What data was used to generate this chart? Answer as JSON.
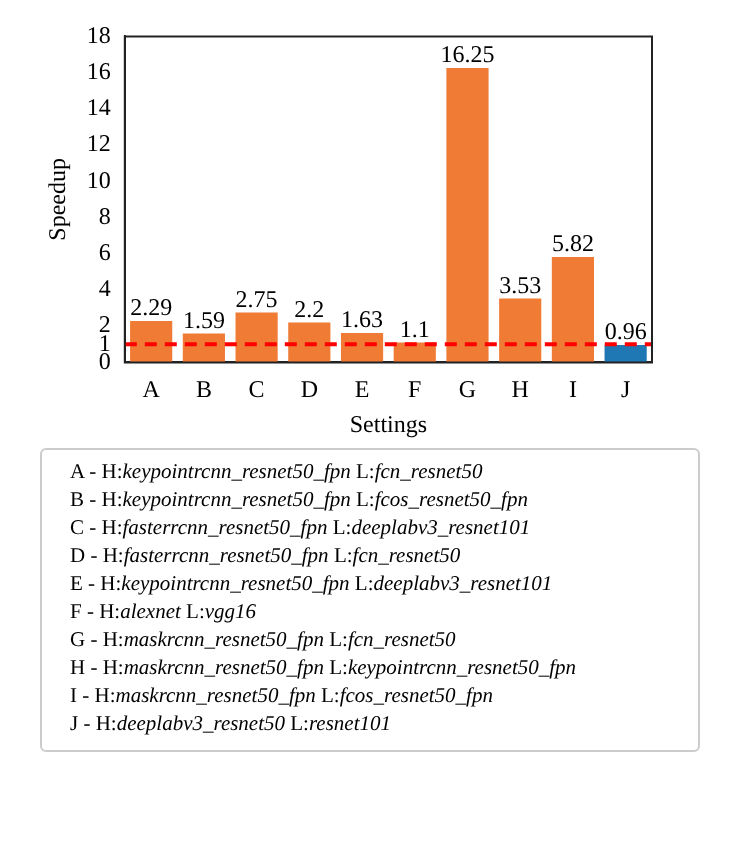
{
  "chart_data": {
    "type": "bar",
    "xlabel": "Settings",
    "ylabel": "Speedup",
    "categories": [
      "A",
      "B",
      "C",
      "D",
      "E",
      "F",
      "G",
      "H",
      "I",
      "J"
    ],
    "values": [
      2.29,
      1.59,
      2.75,
      2.2,
      1.63,
      1.1,
      16.25,
      3.53,
      5.82,
      0.96
    ],
    "colors": [
      "#ef7b35",
      "#ef7b35",
      "#ef7b35",
      "#ef7b35",
      "#ef7b35",
      "#ef7b35",
      "#ef7b35",
      "#ef7b35",
      "#ef7b35",
      "#1f77b4"
    ],
    "data_labels": true,
    "ylim": [
      0,
      18
    ],
    "yticks": [
      0,
      1,
      2,
      4,
      6,
      8,
      10,
      12,
      14,
      16,
      18
    ],
    "grid": false,
    "legend": false,
    "ref_lines": [
      {
        "axis": "y",
        "value": 1,
        "color": "#ff0000",
        "line_style": "dashed"
      }
    ],
    "annotations": [
      "A - H:keypointrcnn_resnet50_fpn L:fcn_resnet50",
      "B - H:keypointrcnn_resnet50_fpn L:fcos_resnet50_fpn",
      "C - H:fasterrcnn_resnet50_fpn L:deeplabv3_resnet101",
      "D - H:fasterrcnn_resnet50_fpn L:fcn_resnet50",
      "E - H:keypointrcnn_resnet50_fpn L:deeplabv3_resnet101",
      "F - H:alexnet L:vgg16",
      "G - H:maskrcnn_resnet50_fpn L:fcn_resnet50",
      "H - H:maskrcnn_resnet50_fpn L:keypointrcnn_resnet50_fpn",
      "I - H:maskrcnn_resnet50_fpn L:fcos_resnet50_fpn",
      "J - H:deeplabv3_resnet50 L:resnet101"
    ]
  }
}
